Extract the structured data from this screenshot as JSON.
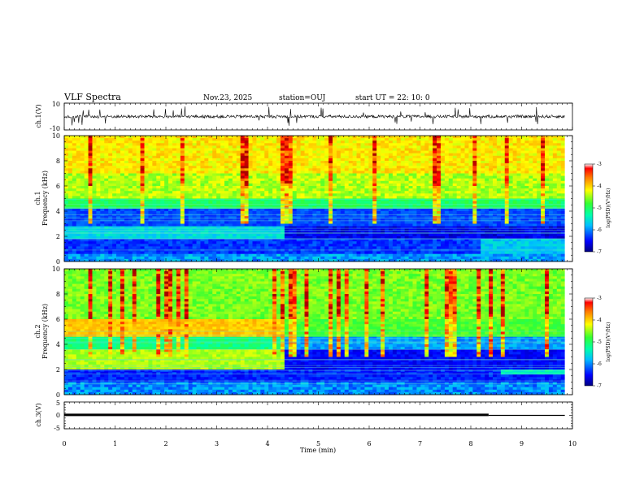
{
  "header": {
    "title": "VLF Spectra",
    "date": "Nov.23, 2025",
    "station": "station=OUJ",
    "start": "start  UT =   22: 10: 0"
  },
  "chart_data": {
    "type": "heatmap",
    "x_axis": {
      "label": "Time (min)",
      "range": [
        0,
        10
      ],
      "ticks": [
        "0",
        "1",
        "2",
        "3",
        "4",
        "5",
        "6",
        "7",
        "8",
        "9",
        "10"
      ]
    },
    "panels": [
      {
        "kind": "waveform",
        "ylabel": "ch.1(V)",
        "ylim": [
          -10,
          10
        ],
        "y_ticks": [
          "10",
          "-10"
        ],
        "baseline": 0
      },
      {
        "kind": "spectrogram",
        "ylabel_channel": "ch.1",
        "ylabel": "Frequency (kHz)",
        "ylim": [
          0,
          10
        ],
        "y_ticks": [
          "0",
          "2",
          "4",
          "6",
          "8",
          "10"
        ],
        "colorbar": {
          "label": "log(PSD)(V²/Hz)",
          "range": [
            -7,
            -3
          ],
          "ticks": [
            "-3",
            "-4",
            "-5",
            "-6",
            "-7"
          ]
        }
      },
      {
        "kind": "spectrogram",
        "ylabel_channel": "ch.2",
        "ylabel": "Frequency (kHz)",
        "ylim": [
          0,
          10
        ],
        "y_ticks": [
          "0",
          "2",
          "4",
          "6",
          "8",
          "10"
        ],
        "colorbar": {
          "label": "log(PSD)(V²/Hz)",
          "range": [
            -7,
            -3
          ],
          "ticks": [
            "-3",
            "-4",
            "-5",
            "-6",
            "-7"
          ]
        }
      },
      {
        "kind": "level",
        "ylabel": "ch.3(V)",
        "ylim": [
          -5,
          5
        ],
        "y_ticks": [
          "5",
          "0",
          "-5"
        ],
        "level_segments": [
          {
            "t_start": 0,
            "t_end": 8.35,
            "value": 0.2
          },
          {
            "t_start": 8.35,
            "t_end": 9.85,
            "value": 0
          }
        ]
      }
    ],
    "data_end_min": 9.85
  },
  "colors": {
    "axis": "#000000",
    "colormap": [
      "#00008a",
      "#0000ff",
      "#00aaff",
      "#00ffcc",
      "#33ff33",
      "#ffff00",
      "#ff8800",
      "#ff0000",
      "#aa0000"
    ]
  }
}
